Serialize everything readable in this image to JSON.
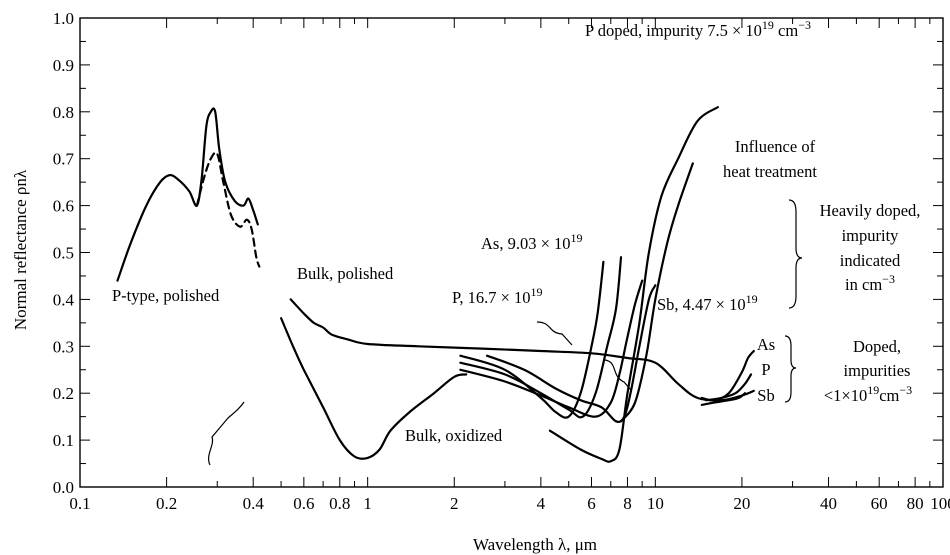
{
  "chart_data": {
    "type": "line",
    "x_scale": "log",
    "xlim": [
      0.1,
      100
    ],
    "ylim": [
      0.0,
      1.0
    ],
    "grid": false,
    "xlabel": "Wavelength λ, μm",
    "ylabel": "Normal reflectance ρnλ",
    "x_ticks": [
      0.1,
      0.2,
      0.4,
      0.6,
      0.8,
      1,
      2,
      4,
      6,
      8,
      10,
      20,
      40,
      60,
      80,
      100
    ],
    "x_tick_labels": [
      "0.1",
      "0.2",
      "0.4",
      "0.6",
      "0.8",
      "1",
      "2",
      "4",
      "6",
      "8",
      "10",
      "20",
      "40",
      "60",
      "80",
      "100"
    ],
    "y_ticks": [
      0.0,
      0.1,
      0.2,
      0.3,
      0.4,
      0.5,
      0.6,
      0.7,
      0.8,
      0.9,
      1.0
    ],
    "y_tick_labels": [
      "0.0",
      "0.1",
      "0.2",
      "0.3",
      "0.4",
      "0.5",
      "0.6",
      "0.7",
      "0.8",
      "0.9",
      "1.0"
    ],
    "series": [
      {
        "style": "solid",
        "points": [
          [
            0.135,
            0.44
          ],
          [
            0.15,
            0.52
          ],
          [
            0.17,
            0.6
          ],
          [
            0.19,
            0.65
          ],
          [
            0.205,
            0.665
          ],
          [
            0.22,
            0.655
          ],
          [
            0.24,
            0.63
          ],
          [
            0.255,
            0.6
          ],
          [
            0.265,
            0.66
          ],
          [
            0.275,
            0.77
          ],
          [
            0.285,
            0.8
          ],
          [
            0.295,
            0.8
          ],
          [
            0.305,
            0.72
          ],
          [
            0.32,
            0.65
          ],
          [
            0.345,
            0.61
          ],
          [
            0.37,
            0.6
          ],
          [
            0.385,
            0.615
          ],
          [
            0.4,
            0.59
          ],
          [
            0.415,
            0.56
          ]
        ]
      },
      {
        "style": "dashed",
        "points": [
          [
            0.255,
            0.6
          ],
          [
            0.27,
            0.66
          ],
          [
            0.285,
            0.7
          ],
          [
            0.3,
            0.71
          ],
          [
            0.315,
            0.65
          ],
          [
            0.335,
            0.58
          ],
          [
            0.36,
            0.555
          ],
          [
            0.38,
            0.57
          ],
          [
            0.395,
            0.55
          ],
          [
            0.41,
            0.49
          ],
          [
            0.42,
            0.47
          ]
        ]
      },
      {
        "style": "solid",
        "points": [
          [
            0.54,
            0.4
          ],
          [
            0.6,
            0.37
          ],
          [
            0.65,
            0.35
          ],
          [
            0.7,
            0.34
          ],
          [
            0.75,
            0.325
          ],
          [
            0.85,
            0.315
          ],
          [
            1.0,
            0.305
          ],
          [
            1.5,
            0.3
          ],
          [
            2.5,
            0.295
          ],
          [
            4,
            0.29
          ],
          [
            6,
            0.285
          ],
          [
            8,
            0.275
          ],
          [
            10,
            0.265
          ],
          [
            12,
            0.22
          ],
          [
            14,
            0.19
          ],
          [
            17,
            0.185
          ],
          [
            20,
            0.195
          ],
          [
            22,
            0.205
          ]
        ]
      },
      {
        "style": "solid",
        "points": [
          [
            0.5,
            0.36
          ],
          [
            0.55,
            0.3
          ],
          [
            0.6,
            0.25
          ],
          [
            0.7,
            0.17
          ],
          [
            0.8,
            0.1
          ],
          [
            0.9,
            0.065
          ],
          [
            1.0,
            0.062
          ],
          [
            1.1,
            0.08
          ],
          [
            1.2,
            0.12
          ],
          [
            1.4,
            0.16
          ],
          [
            1.7,
            0.2
          ],
          [
            2.0,
            0.235
          ],
          [
            2.2,
            0.24
          ]
        ]
      },
      {
        "style": "solid",
        "points": [
          [
            2.1,
            0.28
          ],
          [
            3,
            0.25
          ],
          [
            4,
            0.19
          ],
          [
            4.5,
            0.16
          ],
          [
            5.0,
            0.15
          ],
          [
            5.5,
            0.2
          ],
          [
            6.0,
            0.3
          ],
          [
            6.3,
            0.37
          ],
          [
            6.6,
            0.48
          ]
        ]
      },
      {
        "style": "solid",
        "points": [
          [
            2.1,
            0.265
          ],
          [
            3,
            0.24
          ],
          [
            4,
            0.2
          ],
          [
            5,
            0.165
          ],
          [
            5.6,
            0.15
          ],
          [
            6.2,
            0.2
          ],
          [
            6.8,
            0.3
          ],
          [
            7.3,
            0.38
          ],
          [
            7.6,
            0.49
          ]
        ]
      },
      {
        "style": "solid",
        "points": [
          [
            2.1,
            0.25
          ],
          [
            3,
            0.225
          ],
          [
            4,
            0.195
          ],
          [
            5,
            0.17
          ],
          [
            6.2,
            0.15
          ],
          [
            7.0,
            0.18
          ],
          [
            7.5,
            0.24
          ],
          [
            8.0,
            0.32
          ],
          [
            8.5,
            0.39
          ],
          [
            9.0,
            0.44
          ]
        ]
      },
      {
        "style": "solid",
        "points": [
          [
            2.6,
            0.28
          ],
          [
            3.5,
            0.25
          ],
          [
            4.5,
            0.21
          ],
          [
            5.5,
            0.185
          ],
          [
            6.5,
            0.17
          ],
          [
            7.3,
            0.14
          ],
          [
            7.8,
            0.15
          ],
          [
            8.2,
            0.2
          ],
          [
            8.8,
            0.3
          ],
          [
            9.5,
            0.4
          ],
          [
            10,
            0.43
          ]
        ]
      },
      {
        "style": "solid",
        "points": [
          [
            4.3,
            0.12
          ],
          [
            5.5,
            0.08
          ],
          [
            6.5,
            0.06
          ],
          [
            7.0,
            0.055
          ],
          [
            7.5,
            0.08
          ],
          [
            8,
            0.2
          ],
          [
            8.8,
            0.35
          ],
          [
            9.5,
            0.5
          ],
          [
            10.5,
            0.62
          ],
          [
            12,
            0.7
          ],
          [
            14,
            0.78
          ],
          [
            16.5,
            0.81
          ]
        ]
      },
      {
        "style": "solid",
        "points": [
          [
            7.6,
            0.14
          ],
          [
            8.5,
            0.18
          ],
          [
            9.3,
            0.28
          ],
          [
            10,
            0.4
          ],
          [
            11,
            0.52
          ],
          [
            12,
            0.6
          ],
          [
            13.5,
            0.69
          ]
        ]
      },
      {
        "style": "solid",
        "points": [
          [
            14.5,
            0.19
          ],
          [
            16,
            0.185
          ],
          [
            18,
            0.2
          ],
          [
            20,
            0.245
          ],
          [
            21,
            0.275
          ],
          [
            22,
            0.29
          ]
        ]
      },
      {
        "style": "solid",
        "points": [
          [
            15,
            0.185
          ],
          [
            17,
            0.19
          ],
          [
            19,
            0.2
          ],
          [
            20.5,
            0.22
          ],
          [
            21.5,
            0.24
          ]
        ]
      },
      {
        "style": "solid",
        "points": [
          [
            14.5,
            0.175
          ],
          [
            16,
            0.18
          ],
          [
            18,
            0.185
          ],
          [
            19.5,
            0.19
          ],
          [
            20.5,
            0.2
          ]
        ]
      }
    ],
    "annotations": [
      {
        "id": "p_type",
        "text": "P-type, polished"
      },
      {
        "id": "bulk_polished",
        "text": "Bulk, polished"
      },
      {
        "id": "bulk_oxidized",
        "text": "Bulk, oxidized"
      },
      {
        "id": "p_doped_top",
        "text": "P doped, impurity 7.5 × 10",
        "sup": "19",
        "tail": " cm",
        "sup2": "−3"
      },
      {
        "id": "heat_1",
        "text": "Influence of"
      },
      {
        "id": "heat_2",
        "text": "heat treatment"
      },
      {
        "id": "as_903",
        "text": "As, 9.03 × 10",
        "sup": "19"
      },
      {
        "id": "p_167",
        "text": "P, 16.7 × 10",
        "sup": "19"
      },
      {
        "id": "sb_447",
        "text": "Sb, 4.47 × 10",
        "sup": "19"
      },
      {
        "id": "heavy_1",
        "text": "Heavily doped,"
      },
      {
        "id": "heavy_2",
        "text": "impurity"
      },
      {
        "id": "heavy_3",
        "text": "indicated"
      },
      {
        "id": "heavy_4",
        "text": "in cm",
        "sup": "−3"
      },
      {
        "id": "low_as",
        "text": "As"
      },
      {
        "id": "low_p",
        "text": "P"
      },
      {
        "id": "low_sb",
        "text": "Sb"
      },
      {
        "id": "doped_1",
        "text": "Doped,"
      },
      {
        "id": "doped_2",
        "text": "impurities"
      },
      {
        "id": "doped_3",
        "text": "<1×10",
        "sup": "19",
        "tail": "cm",
        "sup2": "−3"
      }
    ]
  }
}
